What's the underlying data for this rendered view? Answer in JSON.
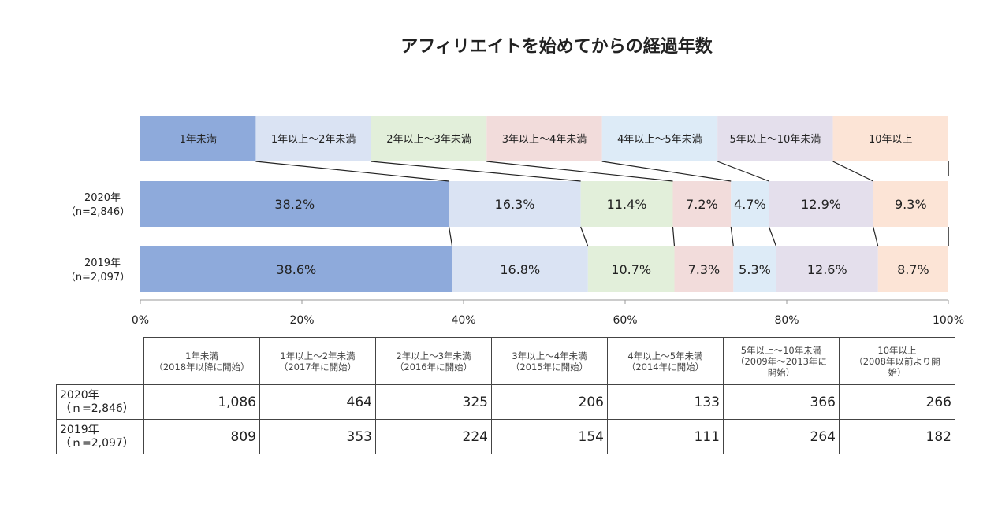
{
  "chart_data": {
    "type": "bar",
    "orientation": "horizontal",
    "stacked": "percent",
    "title": "アフィリエイトを始めてからの経過年数",
    "legend_position": "top",
    "categories": [
      {
        "label_line1": "2020年",
        "label_line2": "（n=2,846）"
      },
      {
        "label_line1": "2019年",
        "label_line2": "（n=2,097）"
      }
    ],
    "series": [
      {
        "name": "1年未満",
        "color": "#8EAADB",
        "values": [
          38.2,
          38.6
        ],
        "labels": [
          "38.2%",
          "38.6%"
        ]
      },
      {
        "name": "1年以上～2年未満",
        "color": "#DAE3F3",
        "values": [
          16.3,
          16.8
        ],
        "labels": [
          "16.3%",
          "16.8%"
        ]
      },
      {
        "name": "2年以上～3年未満",
        "color": "#E2EFDA",
        "values": [
          11.4,
          10.7
        ],
        "labels": [
          "11.4%",
          "10.7%"
        ]
      },
      {
        "name": "3年以上～4年未満",
        "color": "#F2DCDB",
        "values": [
          7.2,
          7.3
        ],
        "labels": [
          "7.2%",
          "7.3%"
        ]
      },
      {
        "name": "4年以上～5年未満",
        "color": "#DDEBF7",
        "values": [
          4.7,
          5.3
        ],
        "labels": [
          "4.7%",
          "5.3%"
        ]
      },
      {
        "name": "5年以上～10年未満",
        "color": "#E4DFEC",
        "values": [
          12.9,
          12.6
        ],
        "labels": [
          "12.9%",
          "12.6%"
        ]
      },
      {
        "name": "10年以上",
        "color": "#FCE4D6",
        "values": [
          9.3,
          8.7
        ],
        "labels": [
          "9.3%",
          "8.7%"
        ]
      }
    ],
    "xlim": [
      0,
      100
    ],
    "xticks": [
      "0%",
      "20%",
      "40%",
      "60%",
      "80%",
      "100%"
    ],
    "grid": false
  },
  "table": {
    "headers": [
      [
        "1年未満",
        "（2018年以降に開始）"
      ],
      [
        "1年以上～2年未満",
        "（2017年に開始）"
      ],
      [
        "2年以上～3年未満",
        "（2016年に開始）"
      ],
      [
        "3年以上～4年未満",
        "（2015年に開始）"
      ],
      [
        "4年以上～5年未満",
        "（2014年に開始）"
      ],
      [
        "5年以上～10年未満",
        "（2009年～2013年に",
        "開始）"
      ],
      [
        "10年以上",
        "（2008年以前より開",
        "始）"
      ]
    ],
    "rows": [
      {
        "label1": "2020年",
        "label2": "（ｎ=2,846）",
        "values": [
          "1,086",
          "464",
          "325",
          "206",
          "133",
          "366",
          "266"
        ]
      },
      {
        "label1": "2019年",
        "label2": "（ｎ=2,097）",
        "values": [
          "809",
          "353",
          "224",
          "154",
          "111",
          "264",
          "182"
        ]
      }
    ]
  }
}
